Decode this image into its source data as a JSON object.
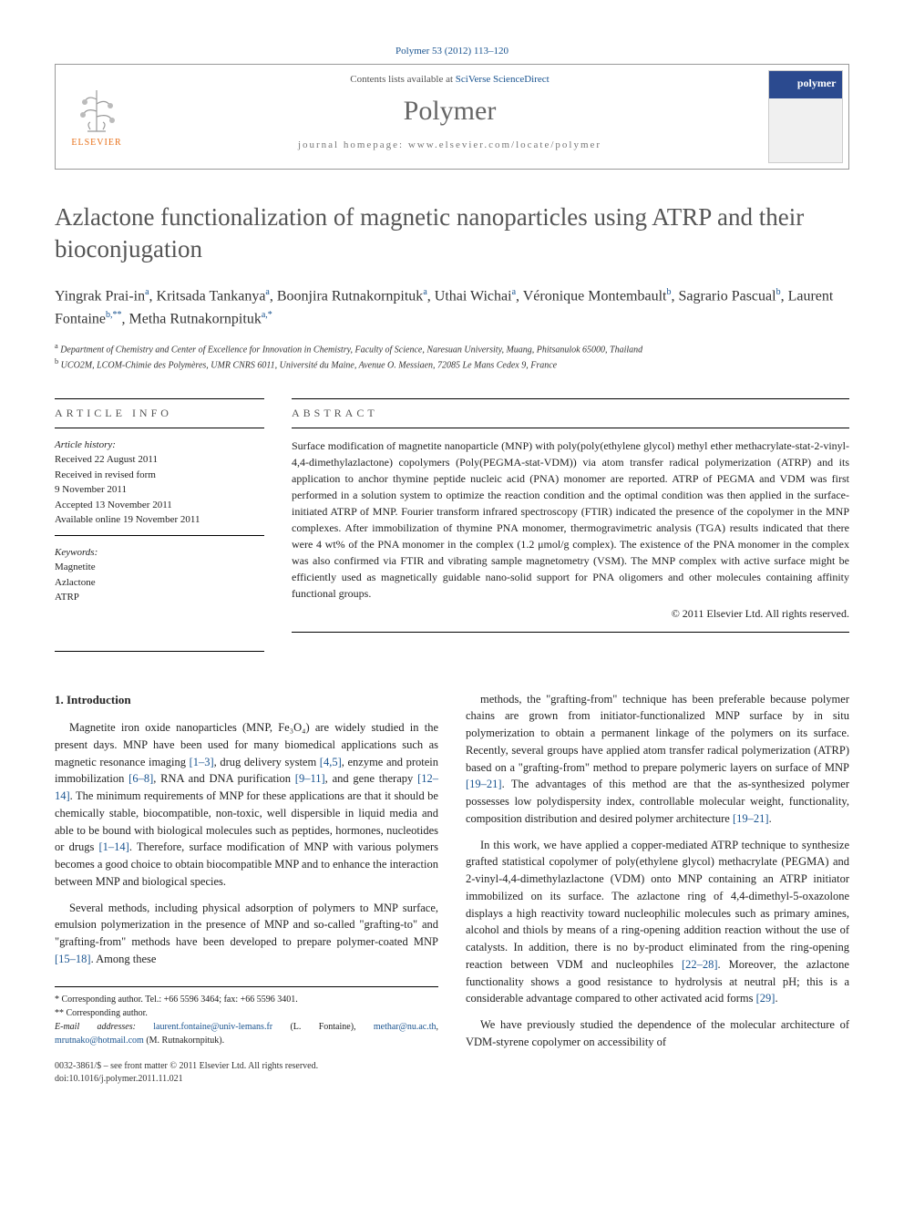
{
  "citation": "Polymer 53 (2012) 113–120",
  "header": {
    "contents_prefix": "Contents lists available at ",
    "contents_link": "SciVerse ScienceDirect",
    "journal": "Polymer",
    "homepage_prefix": "journal homepage: ",
    "homepage_url": "www.elsevier.com/locate/polymer",
    "publisher": "ELSEVIER",
    "cover_label": "polymer"
  },
  "title": "Azlactone functionalization of magnetic nanoparticles using ATRP and their bioconjugation",
  "authors_html": "Yingrak Prai-in<sup>a</sup>, Kritsada Tankanya<sup>a</sup>, Boonjira Rutnakornpituk<sup>a</sup>, Uthai Wichai<sup>a</sup>, Véronique Montembault<sup>b</sup>, Sagrario Pascual<sup>b</sup>, Laurent Fontaine<sup>b,**</sup>, Metha Rutnakornpituk<sup>a,*</sup>",
  "affiliations": [
    "<sup>a</sup> Department of Chemistry and Center of Excellence for Innovation in Chemistry, Faculty of Science, Naresuan University, Muang, Phitsanulok 65000, Thailand",
    "<sup>b</sup> UCO2M, LCOM-Chimie des Polymères, UMR CNRS 6011, Université du Maine, Avenue O. Messiaen, 72085 Le Mans Cedex 9, France"
  ],
  "info": {
    "head": "ARTICLE INFO",
    "history_label": "Article history:",
    "history": [
      "Received 22 August 2011",
      "Received in revised form",
      "9 November 2011",
      "Accepted 13 November 2011",
      "Available online 19 November 2011"
    ],
    "keywords_label": "Keywords:",
    "keywords": [
      "Magnetite",
      "Azlactone",
      "ATRP"
    ]
  },
  "abstract": {
    "head": "ABSTRACT",
    "text": "Surface modification of magnetite nanoparticle (MNP) with poly(poly(ethylene glycol) methyl ether methacrylate-stat-2-vinyl-4,4-dimethylazlactone) copolymers (Poly(PEGMA-stat-VDM)) via atom transfer radical polymerization (ATRP) and its application to anchor thymine peptide nucleic acid (PNA) monomer are reported. ATRP of PEGMA and VDM was first performed in a solution system to optimize the reaction condition and the optimal condition was then applied in the surface-initiated ATRP of MNP. Fourier transform infrared spectroscopy (FTIR) indicated the presence of the copolymer in the MNP complexes. After immobilization of thymine PNA monomer, thermogravimetric analysis (TGA) results indicated that there were 4 wt% of the PNA monomer in the complex (1.2 μmol/g complex). The existence of the PNA monomer in the complex was also confirmed via FTIR and vibrating sample magnetometry (VSM). The MNP complex with active surface might be efficiently used as magnetically guidable nano-solid support for PNA oligomers and other molecules containing affinity functional groups.",
    "copyright": "© 2011 Elsevier Ltd. All rights reserved."
  },
  "body": {
    "section_num": "1.",
    "section_title": "Introduction",
    "left_paras": [
      "Magnetite iron oxide nanoparticles (MNP, Fe₃O₄) are widely studied in the present days. MNP have been used for many biomedical applications such as magnetic resonance imaging <span class=\"ref\">[1–3]</span>, drug delivery system <span class=\"ref\">[4,5]</span>, enzyme and protein immobilization <span class=\"ref\">[6–8]</span>, RNA and DNA purification <span class=\"ref\">[9–11]</span>, and gene therapy <span class=\"ref\">[12–14]</span>. The minimum requirements of MNP for these applications are that it should be chemically stable, biocompatible, non-toxic, well dispersible in liquid media and able to be bound with biological molecules such as peptides, hormones, nucleotides or drugs <span class=\"ref\">[1–14]</span>. Therefore, surface modification of MNP with various polymers becomes a good choice to obtain biocompatible MNP and to enhance the interaction between MNP and biological species.",
      "Several methods, including physical adsorption of polymers to MNP surface, emulsion polymerization in the presence of MNP and so-called \"grafting-to\" and \"grafting-from\" methods have been developed to prepare polymer-coated MNP <span class=\"ref\">[15–18]</span>. Among these"
    ],
    "right_paras": [
      "methods, the \"grafting-from\" technique has been preferable because polymer chains are grown from initiator-functionalized MNP surface by in situ polymerization to obtain a permanent linkage of the polymers on its surface. Recently, several groups have applied atom transfer radical polymerization (ATRP) based on a \"grafting-from\" method to prepare polymeric layers on surface of MNP <span class=\"ref\">[19–21]</span>. The advantages of this method are that the as-synthesized polymer possesses low polydispersity index, controllable molecular weight, functionality, composition distribution and desired polymer architecture <span class=\"ref\">[19–21]</span>.",
      "In this work, we have applied a copper-mediated ATRP technique to synthesize grafted statistical copolymer of poly(ethylene glycol) methacrylate (PEGMA) and 2-vinyl-4,4-dimethylazlactone (VDM) onto MNP containing an ATRP initiator immobilized on its surface. The azlactone ring of 4,4-dimethyl-5-oxazolone displays a high reactivity toward nucleophilic molecules such as primary amines, alcohol and thiols by means of a ring-opening addition reaction without the use of catalysts. In addition, there is no by-product eliminated from the ring-opening reaction between VDM and nucleophiles <span class=\"ref\">[22–28]</span>. Moreover, the azlactone functionality shows a good resistance to hydrolysis at neutral pH; this is a considerable advantage compared to other activated acid forms <span class=\"ref\">[29]</span>.",
      "We have previously studied the dependence of the molecular architecture of VDM-styrene copolymer on accessibility of"
    ]
  },
  "footer": {
    "corr1": "* Corresponding author. Tel.: +66 5596 3464; fax: +66 5596 3401.",
    "corr2": "** Corresponding author.",
    "email_label": "E-mail addresses:",
    "emails": "laurent.fontaine@univ-lemans.fr (L. Fontaine), methar@nu.ac.th, mrutnako@hotmail.com (M. Rutnakornpituk).",
    "issn": "0032-3861/$ – see front matter © 2011 Elsevier Ltd. All rights reserved.",
    "doi": "doi:10.1016/j.polymer.2011.11.021"
  },
  "colors": {
    "link": "#1a5490",
    "orange": "#e8711a",
    "gray_title": "#555555"
  }
}
